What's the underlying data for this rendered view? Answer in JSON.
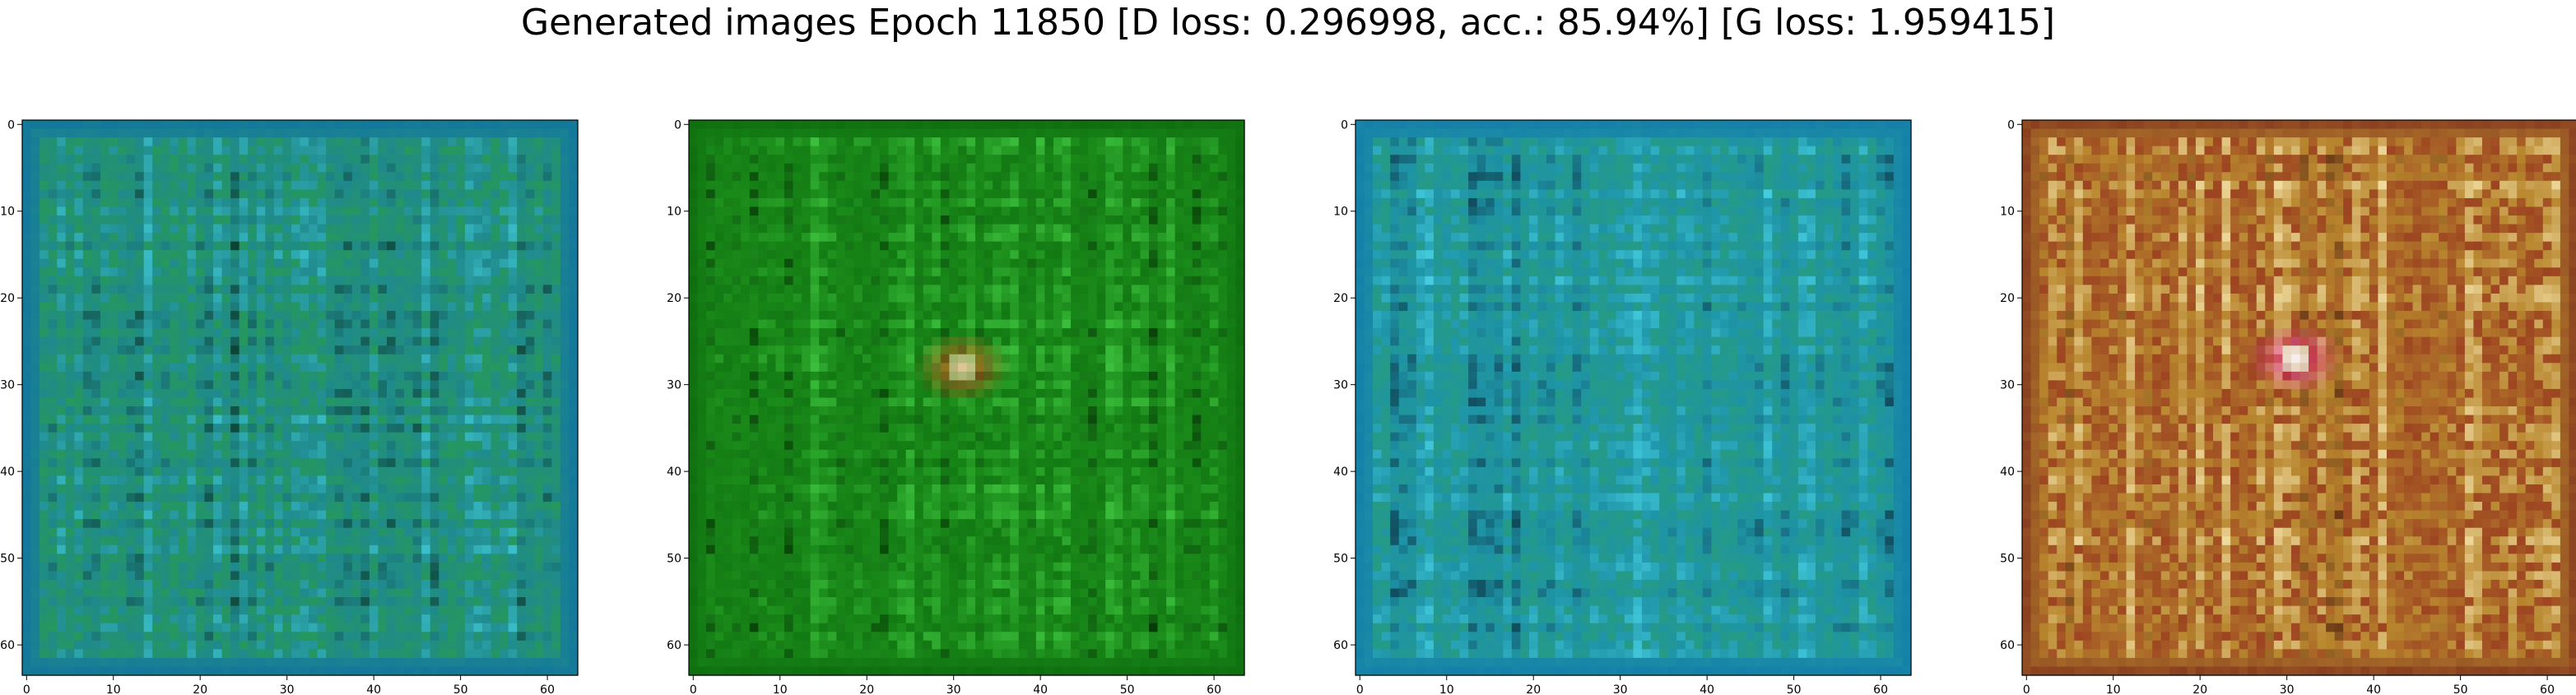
{
  "title": "Generated images Epoch 11850 [D loss: 0.296998, acc.: 85.94%] [G loss: 1.959415]",
  "axes": {
    "x_ticks": [
      "0",
      "10",
      "20",
      "30",
      "40",
      "50",
      "60"
    ],
    "y_ticks": [
      "0",
      "10",
      "20",
      "30",
      "40",
      "50",
      "60"
    ],
    "range": [
      0,
      63
    ]
  },
  "panels": [
    {
      "name": "sample-1",
      "palette": {
        "base": "#1f8a8c",
        "light": "#3fc7d4",
        "dark": "#0b3a2a",
        "accent": "#29a040",
        "border": "#13789a"
      }
    },
    {
      "name": "sample-2",
      "palette": {
        "base": "#1a8a1a",
        "light": "#3cbf3c",
        "dark": "#063806",
        "accent": "#0e6f0e",
        "border": "#0f6f0f"
      },
      "blob": {
        "x": 31,
        "y": 28,
        "colors": [
          "#d86a22",
          "#e8c59a",
          "#b83218"
        ]
      }
    },
    {
      "name": "sample-3",
      "palette": {
        "base": "#1e93a6",
        "light": "#45cde0",
        "dark": "#0d3a4a",
        "accent": "#2aa070",
        "border": "#1580a8"
      }
    },
    {
      "name": "sample-4",
      "palette": {
        "base": "#b8862e",
        "light": "#f0dca0",
        "dark": "#5a2810",
        "accent": "#8a1818",
        "border": "#8a4020"
      },
      "blob": {
        "x": 31,
        "y": 27,
        "colors": [
          "#e84aa8",
          "#f7f2f4",
          "#d51c6a"
        ]
      }
    }
  ]
}
